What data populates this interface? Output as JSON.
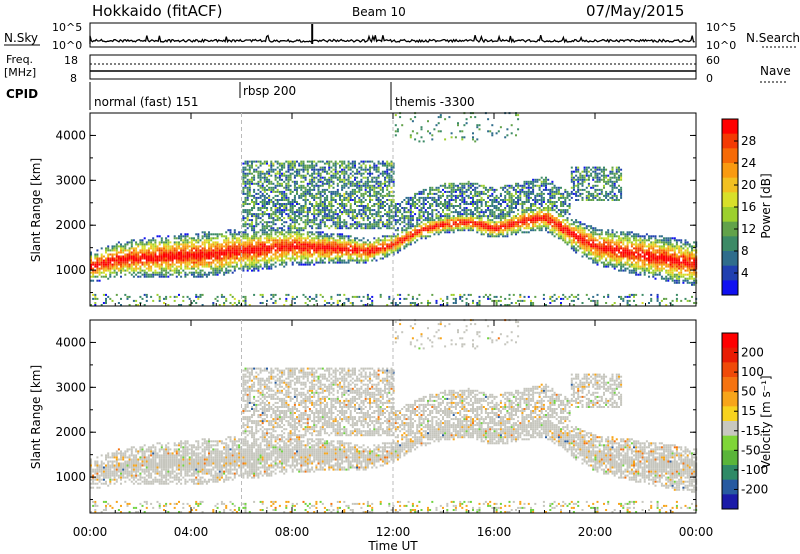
{
  "header": {
    "station": "Hokkaido (fitACF)",
    "beam": "Beam 10",
    "date": "07/May/2015"
  },
  "top_panels": {
    "nsky_label": "N.Sky",
    "nsky_ticks": [
      "10^5",
      "10^0"
    ],
    "nsearch_label": "N.Search",
    "nsearch_ticks": [
      "10^5",
      "10^0"
    ],
    "freq_label_line1": "Freq.",
    "freq_label_line2": "[MHz]",
    "freq_ticks": [
      "18",
      "8"
    ],
    "nave_label": "Nave",
    "nave_ticks": [
      "60",
      "0"
    ],
    "cpid_label": "CPID",
    "cpid_segments": [
      {
        "label": "normal (fast) 151",
        "start_h": 0,
        "end_h": 6
      },
      {
        "label": "rbsp 200",
        "start_h": 6,
        "end_h": 12
      },
      {
        "label": "themis -3300",
        "start_h": 12,
        "end_h": 24
      }
    ]
  },
  "chart_data": [
    {
      "type": "heatmap",
      "title": "",
      "xlabel": "",
      "ylabel": "Slant Range [km]",
      "ylim": [
        200,
        4500
      ],
      "xlim_hours": [
        0,
        24
      ],
      "yticks": [
        "1000",
        "2000",
        "3000",
        "4000"
      ],
      "colorbar_label": "Power [dB]",
      "colorbar_ticks": [
        "28",
        "24",
        "20",
        "16",
        "12",
        "8",
        "4"
      ],
      "colorbar_range": [
        0,
        30
      ],
      "colorbar_colors": [
        "#1010f0",
        "#2040b0",
        "#2f6d8c",
        "#3c8a66",
        "#62a24a",
        "#9ccf2e",
        "#d8e02a",
        "#f2c020",
        "#f99a10",
        "#f66a06",
        "#f33a03",
        "#ff0000"
      ]
    },
    {
      "type": "heatmap",
      "title": "",
      "xlabel": "Time UT",
      "ylabel": "Slant Range [km]",
      "ylim": [
        200,
        4500
      ],
      "xlim_hours": [
        0,
        24
      ],
      "yticks": [
        "1000",
        "2000",
        "3000",
        "4000"
      ],
      "xticks": [
        "00:00",
        "04:00",
        "08:00",
        "12:00",
        "16:00",
        "20:00",
        "00:00"
      ],
      "colorbar_label": "Velocity [m s⁻¹]",
      "colorbar_ticks": [
        "200",
        "100",
        "50",
        "15",
        "-15",
        "-50",
        "-100",
        "-200"
      ],
      "colorbar_colors": [
        "#1a1aa8",
        "#275aa0",
        "#2f8a66",
        "#5ab53a",
        "#7fd638",
        "#c8c8c0",
        "#f7d31f",
        "#f7a51a",
        "#f57310",
        "#f04a08",
        "#e81c03",
        "#ff0000"
      ]
    }
  ],
  "colors": {
    "gray_scatter": "#c6c6be",
    "green_scatter": "#6fd33f"
  }
}
